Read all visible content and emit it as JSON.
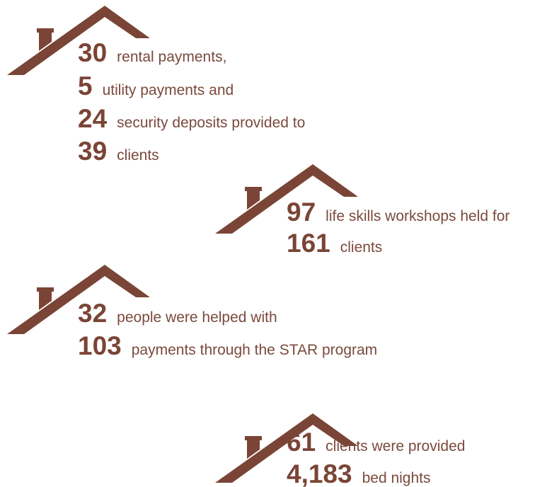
{
  "blocks": [
    {
      "lines": [
        {
          "number": "30",
          "text": "rental payments,"
        },
        {
          "number": "5",
          "text": "utility payments and"
        },
        {
          "number": "24",
          "text": "security deposits provided to"
        },
        {
          "number": "39",
          "text": "clients"
        }
      ]
    },
    {
      "lines": [
        {
          "number": "97",
          "text": "life skills workshops held for"
        },
        {
          "number": "161",
          "text": "clients"
        }
      ]
    },
    {
      "lines": [
        {
          "number": "32",
          "text": "people were helped with"
        },
        {
          "number": "103",
          "text": "payments through the STAR program"
        }
      ]
    },
    {
      "lines": [
        {
          "number": "61",
          "text": "clients were provided"
        },
        {
          "number": "4,183",
          "text": "bed nights"
        }
      ]
    }
  ]
}
